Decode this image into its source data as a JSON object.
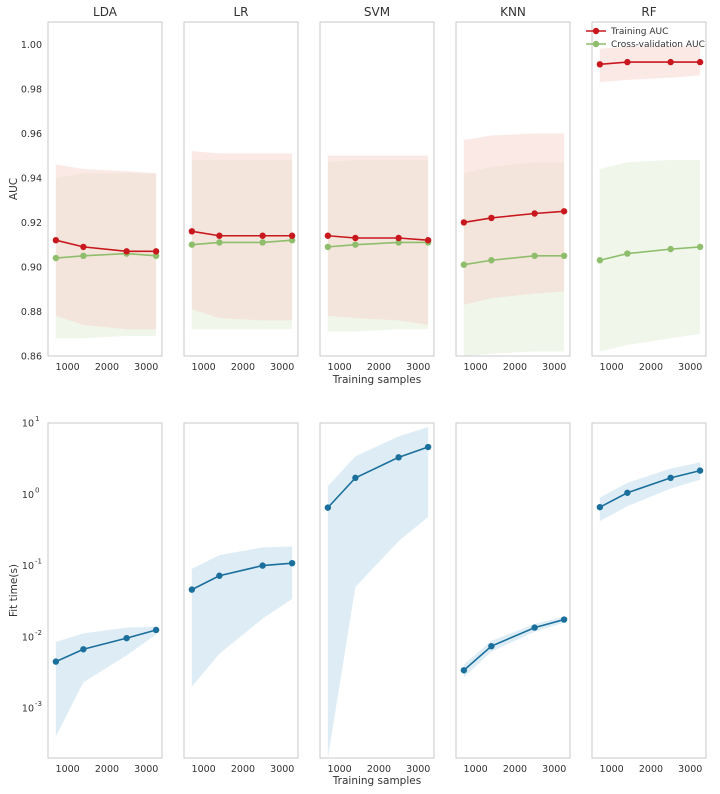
{
  "chart_data": [
    {
      "type": "line",
      "panel": "auc",
      "ylabel": "AUC",
      "xlabel": "Training samples",
      "ylim": [
        0.86,
        1.01
      ],
      "yticks": [
        0.86,
        0.88,
        0.9,
        0.92,
        0.94,
        0.96,
        0.98,
        1.0
      ],
      "ytick_labels": [
        "0.86",
        "0.88",
        "0.90",
        "0.92",
        "0.94",
        "0.96",
        "0.98",
        "1.00"
      ],
      "xlim": [
        500,
        3400
      ],
      "xticks": [
        1000,
        2000,
        3000
      ],
      "xtick_labels": [
        "1000",
        "2000",
        "3000"
      ],
      "grid": false,
      "legend": {
        "placement": "top-right of RF panel",
        "entries": [
          "Training AUC",
          "Cross-validation AUC"
        ]
      },
      "colors": {
        "train": "#c8181e",
        "cv": "#8ebe6c",
        "train_band": "#f8d7d0",
        "cv_band": "#e4efd8"
      },
      "x": [
        700,
        1400,
        2500,
        3250
      ],
      "models": [
        {
          "title": "LDA",
          "train": [
            0.912,
            0.909,
            0.907,
            0.907
          ],
          "train_lo": [
            0.878,
            0.874,
            0.872,
            0.872
          ],
          "train_hi": [
            0.946,
            0.944,
            0.943,
            0.942
          ],
          "cv": [
            0.904,
            0.905,
            0.906,
            0.905
          ],
          "cv_lo": [
            0.868,
            0.868,
            0.869,
            0.869
          ],
          "cv_hi": [
            0.94,
            0.942,
            0.942,
            0.942
          ]
        },
        {
          "title": "LR",
          "train": [
            0.916,
            0.914,
            0.914,
            0.914
          ],
          "train_lo": [
            0.881,
            0.877,
            0.876,
            0.876
          ],
          "train_hi": [
            0.952,
            0.951,
            0.951,
            0.951
          ],
          "cv": [
            0.91,
            0.911,
            0.911,
            0.912
          ],
          "cv_lo": [
            0.872,
            0.872,
            0.872,
            0.872
          ],
          "cv_hi": [
            0.948,
            0.948,
            0.948,
            0.948
          ]
        },
        {
          "title": "SVM",
          "train": [
            0.914,
            0.913,
            0.913,
            0.912
          ],
          "train_lo": [
            0.878,
            0.877,
            0.876,
            0.874
          ],
          "train_hi": [
            0.95,
            0.95,
            0.95,
            0.95
          ],
          "cv": [
            0.909,
            0.91,
            0.911,
            0.911
          ],
          "cv_lo": [
            0.871,
            0.871,
            0.872,
            0.872
          ],
          "cv_hi": [
            0.947,
            0.948,
            0.948,
            0.948
          ]
        },
        {
          "title": "KNN",
          "train": [
            0.92,
            0.922,
            0.924,
            0.925
          ],
          "train_lo": [
            0.883,
            0.886,
            0.888,
            0.889
          ],
          "train_hi": [
            0.957,
            0.959,
            0.96,
            0.96
          ],
          "cv": [
            0.901,
            0.903,
            0.905,
            0.905
          ],
          "cv_lo": [
            0.86,
            0.861,
            0.862,
            0.862
          ],
          "cv_hi": [
            0.942,
            0.945,
            0.947,
            0.947
          ]
        },
        {
          "title": "RF",
          "train": [
            0.991,
            0.992,
            0.992,
            0.992
          ],
          "train_lo": [
            0.983,
            0.984,
            0.985,
            0.986
          ],
          "train_hi": [
            0.998,
            0.999,
            0.999,
            0.999
          ],
          "cv": [
            0.903,
            0.906,
            0.908,
            0.909
          ],
          "cv_lo": [
            0.862,
            0.865,
            0.868,
            0.87
          ],
          "cv_hi": [
            0.944,
            0.947,
            0.948,
            0.948
          ]
        }
      ]
    },
    {
      "type": "line",
      "panel": "fit_time",
      "ylabel": "Fit time(s)",
      "xlabel": "Training samples",
      "yscale": "log",
      "ylim": [
        0.0002,
        10
      ],
      "yticks": [
        0.001,
        0.01,
        0.1,
        1,
        10
      ],
      "ytick_labels": [
        "10",
        "10",
        "10",
        "10",
        "10"
      ],
      "ytick_exponents": [
        "-3",
        "-2",
        "-1",
        "0",
        "1"
      ],
      "xlim": [
        500,
        3400
      ],
      "xticks": [
        1000,
        2000,
        3000
      ],
      "xtick_labels": [
        "1000",
        "2000",
        "3000"
      ],
      "grid": false,
      "colors": {
        "line": "#1a6f9c",
        "band": "#d6e8f2"
      },
      "x": [
        700,
        1400,
        2500,
        3250
      ],
      "models": [
        {
          "title": "LDA",
          "mean": [
            0.0045,
            0.0067,
            0.0096,
            0.0125
          ],
          "lo": [
            0.0004,
            0.0023,
            0.0055,
            0.0108
          ],
          "hi": [
            0.0085,
            0.0112,
            0.0135,
            0.014
          ]
        },
        {
          "title": "LR",
          "mean": [
            0.046,
            0.072,
            0.1,
            0.108
          ],
          "lo": [
            0.002,
            0.0058,
            0.018,
            0.034
          ],
          "hi": [
            0.09,
            0.14,
            0.18,
            0.185
          ]
        },
        {
          "title": "SVM",
          "mean": [
            0.65,
            1.7,
            3.3,
            4.6
          ],
          "lo": [
            0.0002,
            0.05,
            0.22,
            0.48
          ],
          "hi": [
            1.3,
            3.4,
            6.5,
            8.8
          ]
        },
        {
          "title": "KNN",
          "mean": [
            0.0034,
            0.0074,
            0.0135,
            0.0175
          ],
          "lo": [
            0.0027,
            0.0062,
            0.0118,
            0.0158
          ],
          "hi": [
            0.0041,
            0.0088,
            0.0152,
            0.0192
          ]
        },
        {
          "title": "RF",
          "mean": [
            0.66,
            1.05,
            1.7,
            2.15
          ],
          "lo": [
            0.42,
            0.68,
            1.2,
            1.6
          ],
          "hi": [
            0.9,
            1.45,
            2.3,
            2.8
          ]
        }
      ]
    }
  ]
}
